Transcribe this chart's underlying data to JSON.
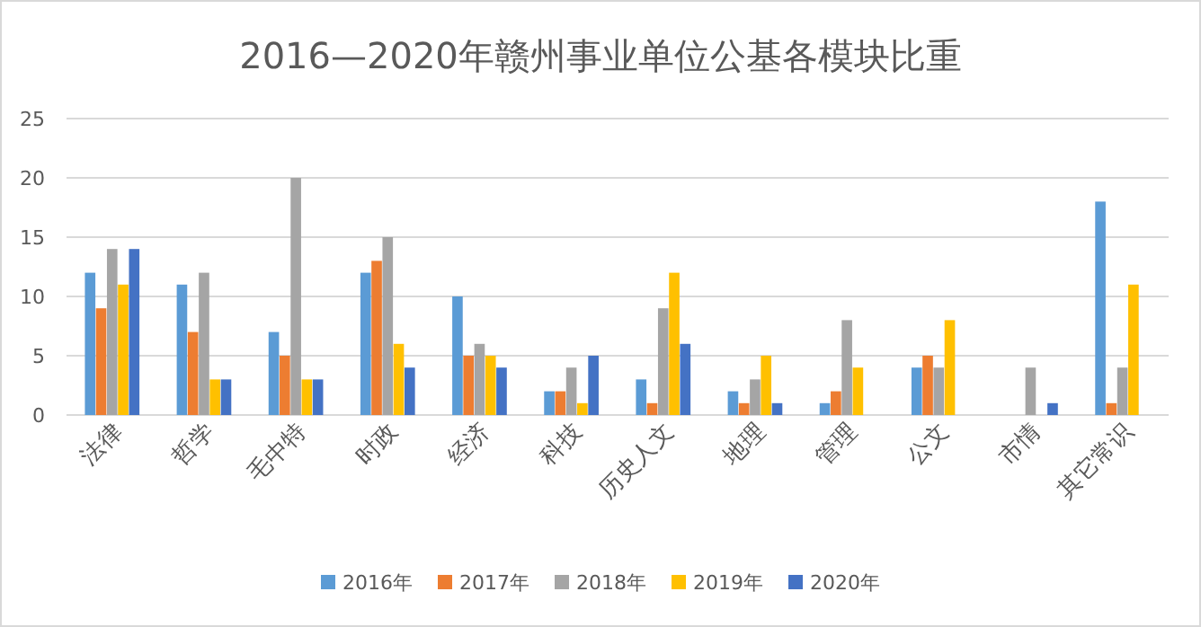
{
  "chart_data": {
    "type": "bar",
    "title": "2016—2020年赣州事业单位公基各模块比重",
    "categories": [
      "法律",
      "哲学",
      "毛中特",
      "时政",
      "经济",
      "科技",
      "历史人文",
      "地理",
      "管理",
      "公文",
      "市情",
      "其它常识"
    ],
    "series": [
      {
        "name": "2016年",
        "color": "#5b9bd5",
        "values": [
          12,
          11,
          7,
          12,
          10,
          2,
          3,
          2,
          1,
          4,
          0,
          18
        ]
      },
      {
        "name": "2017年",
        "color": "#ed7d31",
        "values": [
          9,
          7,
          5,
          13,
          5,
          2,
          1,
          1,
          2,
          5,
          0,
          1
        ]
      },
      {
        "name": "2018年",
        "color": "#a5a5a5",
        "values": [
          14,
          12,
          20,
          15,
          6,
          4,
          9,
          3,
          8,
          4,
          4,
          4
        ]
      },
      {
        "name": "2019年",
        "color": "#ffc000",
        "values": [
          11,
          3,
          3,
          6,
          5,
          1,
          12,
          5,
          4,
          8,
          0,
          11
        ]
      },
      {
        "name": "2020年",
        "color": "#4472c4",
        "values": [
          14,
          3,
          3,
          4,
          4,
          5,
          6,
          1,
          0,
          0,
          1,
          0
        ]
      }
    ],
    "ylim": [
      0,
      25
    ],
    "yticks": [
      0,
      5,
      10,
      15,
      20,
      25
    ],
    "grid": "y",
    "legend": "bottom"
  }
}
